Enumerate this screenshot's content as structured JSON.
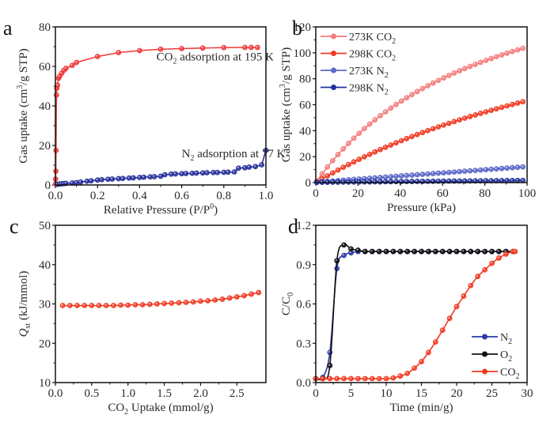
{
  "chart_data": [
    {
      "id": "a",
      "type": "line",
      "panel_letter": "a",
      "title": "",
      "xlabel": "Relative Pressure (P/P0)",
      "xlabel_parts": {
        "main": "Relative Pressure (P/P",
        "sup": "0",
        "tail": ")"
      },
      "ylabel": "Gas uptake (cm3/g STP)",
      "ylabel_parts": {
        "main": "Gas uptake (cm",
        "sup": "3",
        "tail": "/g STP)"
      },
      "xlim": [
        0,
        1.0
      ],
      "ylim": [
        0,
        80
      ],
      "xticks": [
        0.0,
        0.2,
        0.4,
        0.6,
        0.8,
        1.0
      ],
      "xtick_labels": [
        "0.0",
        "0.2",
        "0.4",
        "0.6",
        "0.8",
        "1.0"
      ],
      "yticks": [
        0,
        20,
        40,
        60,
        80
      ],
      "ytick_labels": [
        "0",
        "20",
        "40",
        "60",
        "80"
      ],
      "grid": false,
      "series": [
        {
          "name": "CO2 adsorption at 195 K",
          "color": "#f03a3a",
          "x": [
            0.0005,
            0.001,
            0.002,
            0.003,
            0.005,
            0.007,
            0.01,
            0.015,
            0.02,
            0.03,
            0.04,
            0.05,
            0.08,
            0.1,
            0.2,
            0.3,
            0.4,
            0.5,
            0.6,
            0.7,
            0.8,
            0.9,
            0.93,
            0.96
          ],
          "y": [
            0.5,
            3,
            7,
            17.5,
            45.5,
            49,
            50.5,
            54,
            55,
            56.5,
            58,
            59,
            60.5,
            62,
            65,
            67,
            68,
            68.7,
            69,
            69.3,
            69.5,
            69.6,
            69.6,
            69.6
          ]
        },
        {
          "name": "N2 adsorption at 77 K",
          "color": "#27309a",
          "x": [
            0.01,
            0.02,
            0.03,
            0.04,
            0.05,
            0.08,
            0.1,
            0.12,
            0.15,
            0.17,
            0.2,
            0.22,
            0.25,
            0.27,
            0.3,
            0.32,
            0.35,
            0.37,
            0.4,
            0.42,
            0.45,
            0.47,
            0.5,
            0.52,
            0.55,
            0.57,
            0.6,
            0.62,
            0.65,
            0.67,
            0.7,
            0.72,
            0.75,
            0.77,
            0.8,
            0.82,
            0.85,
            0.87,
            0.9,
            0.92,
            0.95,
            0.98,
            1.0
          ],
          "y": [
            0.3,
            0.5,
            0.6,
            0.7,
            0.8,
            1.0,
            1.2,
            1.5,
            1.9,
            2.1,
            2.5,
            2.7,
            2.9,
            3.0,
            3.2,
            3.3,
            3.5,
            3.6,
            3.8,
            3.9,
            4.1,
            4.2,
            4.4,
            5.2,
            5.5,
            5.6,
            5.7,
            5.8,
            5.9,
            6.0,
            6.1,
            6.2,
            6.3,
            6.3,
            6.4,
            6.5,
            6.6,
            8.5,
            8.7,
            9.0,
            9.3,
            10.2,
            17.5
          ]
        }
      ],
      "annotations": [
        {
          "text": "CO2 adsorption at 195 K",
          "parts": {
            "main": "CO",
            "sub": "2",
            "tail": " adsorption at 195 K"
          },
          "x": 0.48,
          "y": 63
        },
        {
          "text": "N2 adsorption at 77 K",
          "parts": {
            "main": "N",
            "sub": "2",
            "tail": " adsorption at 77 K"
          },
          "x": 0.6,
          "y": 14
        }
      ]
    },
    {
      "id": "b",
      "type": "line",
      "panel_letter": "b",
      "title": "",
      "xlabel": "Pressure (kPa)",
      "ylabel": "Gas uptake (cm3/g STP)",
      "ylabel_parts": {
        "main": "Gas uptake (cm",
        "sup": "3",
        "tail": "/g STP)"
      },
      "xlim": [
        0,
        100
      ],
      "ylim": [
        0,
        120
      ],
      "xticks": [
        0,
        20,
        40,
        60,
        80,
        100
      ],
      "xtick_labels": [
        "0",
        "20",
        "40",
        "60",
        "80",
        "100"
      ],
      "yticks": [
        0,
        20,
        40,
        60,
        80,
        100,
        120
      ],
      "ytick_labels": [
        "0",
        "20",
        "40",
        "60",
        "80",
        "100",
        "120"
      ],
      "grid": false,
      "legend": "top-left",
      "series": [
        {
          "name": "273K CO2",
          "legend_parts": {
            "main": "273K CO",
            "sub": "2"
          },
          "color": "#f47c7c",
          "model": {
            "kind": "langmuir",
            "qmax": 190,
            "b": 0.0122,
            "x_start": 0.5,
            "step": 2.5
          }
        },
        {
          "name": "298K CO2",
          "legend_parts": {
            "main": "298K CO",
            "sub": "2"
          },
          "color": "#f03a22",
          "model": {
            "kind": "langmuir",
            "qmax": 180,
            "b": 0.0054,
            "x_start": 0.5,
            "step": 2.5
          }
        },
        {
          "name": "273K N2",
          "legend_parts": {
            "main": "273K N",
            "sub": "2"
          },
          "color": "#5b68c6",
          "model": {
            "kind": "linear",
            "slope": 0.12,
            "offset": 0.3,
            "x_start": 0.5,
            "step": 2.5
          }
        },
        {
          "name": "298K N2",
          "legend_parts": {
            "main": "298K N",
            "sub": "2"
          },
          "color": "#22309a",
          "model": {
            "kind": "linear",
            "slope": 0.015,
            "offset": 0.2,
            "x_start": 0.5,
            "step": 2.5
          }
        }
      ],
      "series_summary": {
        "273K CO2": {
          "x": [
            0,
            10,
            20,
            30,
            40,
            50,
            60,
            70,
            80,
            90,
            100
          ],
          "y": [
            0,
            24,
            48,
            66,
            77,
            85,
            91,
            96,
            99,
            102,
            104
          ]
        },
        "298K CO2": {
          "x": [
            0,
            10,
            20,
            30,
            40,
            50,
            60,
            70,
            80,
            90,
            100
          ],
          "y": [
            0,
            9,
            18,
            26,
            33,
            40,
            46,
            51,
            55,
            59,
            63
          ]
        },
        "273K N2": {
          "x": [
            0,
            20,
            40,
            60,
            80,
            100
          ],
          "y": [
            0.3,
            2.7,
            5,
            7.5,
            10,
            12
          ]
        },
        "298K N2": {
          "x": [
            0,
            20,
            40,
            60,
            80,
            100
          ],
          "y": [
            0.2,
            0.5,
            0.8,
            1.1,
            1.4,
            1.7
          ]
        }
      }
    },
    {
      "id": "c",
      "type": "line",
      "panel_letter": "c",
      "title": "",
      "xlabel": "CO2 Uptake (mmol/g)",
      "xlabel_parts": {
        "main": "CO",
        "sub": "2",
        "tail": " Uptake (mmol/g)"
      },
      "ylabel": "Qst (kJ/mmol)",
      "ylabel_parts": {
        "main": "Q",
        "sub": "st",
        "tail": " (kJ/mmol)"
      },
      "xlim": [
        0,
        2.9
      ],
      "ylim": [
        10,
        50
      ],
      "xticks": [
        0.0,
        0.5,
        1.0,
        1.5,
        2.0,
        2.5
      ],
      "xtick_labels": [
        "0.0",
        "0.5",
        "1.0",
        "1.5",
        "2.0",
        "2.5"
      ],
      "yticks": [
        10,
        20,
        30,
        40,
        50
      ],
      "ytick_labels": [
        "10",
        "20",
        "30",
        "40",
        "50"
      ],
      "grid": false,
      "series": [
        {
          "name": "Qst",
          "color": "#f03a22",
          "x": [
            0.1,
            0.2,
            0.3,
            0.4,
            0.5,
            0.6,
            0.7,
            0.8,
            0.9,
            1.0,
            1.1,
            1.2,
            1.3,
            1.4,
            1.5,
            1.6,
            1.7,
            1.8,
            1.9,
            2.0,
            2.1,
            2.2,
            2.3,
            2.4,
            2.5,
            2.6,
            2.7,
            2.8
          ],
          "y": [
            29.6,
            29.6,
            29.6,
            29.6,
            29.6,
            29.6,
            29.6,
            29.6,
            29.7,
            29.7,
            29.8,
            29.8,
            29.9,
            30.0,
            30.1,
            30.2,
            30.3,
            30.4,
            30.5,
            30.7,
            30.8,
            31.0,
            31.2,
            31.5,
            31.8,
            32.1,
            32.5,
            32.9
          ]
        }
      ]
    },
    {
      "id": "d",
      "type": "line",
      "panel_letter": "d",
      "title": "",
      "xlabel": "Time (min/g)",
      "ylabel": "C/C0",
      "ylabel_parts": {
        "main": "C/C",
        "sub": "0",
        "tail": ""
      },
      "xlim": [
        0,
        30
      ],
      "ylim": [
        0,
        1.2
      ],
      "xticks": [
        0,
        5,
        10,
        15,
        20,
        25,
        30
      ],
      "xtick_labels": [
        "0",
        "5",
        "10",
        "15",
        "20",
        "25",
        "30"
      ],
      "yticks": [
        0.0,
        0.3,
        0.6,
        0.9,
        1.2
      ],
      "ytick_labels": [
        "0.0",
        "0.3",
        "0.6",
        "0.9",
        "1.2"
      ],
      "grid": false,
      "legend": "bottom-right",
      "series": [
        {
          "name": "N2",
          "legend_parts": {
            "main": "N",
            "sub": "2"
          },
          "color": "#2a3aa8",
          "x": [
            0,
            1,
            2,
            3,
            4,
            5,
            6,
            7,
            8,
            9,
            10,
            11,
            12,
            13,
            14,
            15,
            16,
            17,
            18,
            19,
            20,
            21,
            22,
            23,
            24,
            25,
            26,
            27,
            28
          ],
          "y": [
            0.03,
            0.04,
            0.23,
            0.87,
            0.97,
            0.99,
            1.0,
            1.0,
            1.0,
            1.0,
            1.0,
            1.0,
            1.0,
            1.0,
            1.0,
            1.0,
            1.0,
            1.0,
            1.0,
            1.0,
            1.0,
            1.0,
            1.0,
            1.0,
            1.0,
            1.0,
            1.0,
            1.0,
            1.0
          ]
        },
        {
          "name": "O2",
          "legend_parts": {
            "main": "O",
            "sub": "2"
          },
          "color": "#111111",
          "x": [
            0,
            1,
            2,
            3,
            4,
            5,
            6,
            7,
            8,
            9,
            10,
            11,
            12,
            13,
            14,
            15,
            16,
            17,
            18,
            19,
            20,
            21,
            22,
            23,
            24,
            25,
            26,
            27,
            28
          ],
          "y": [
            0.03,
            0.03,
            0.13,
            0.93,
            1.05,
            1.02,
            1.01,
            1.0,
            1.0,
            1.0,
            1.0,
            1.0,
            1.0,
            1.0,
            1.0,
            1.0,
            1.0,
            1.0,
            1.0,
            1.0,
            1.0,
            1.0,
            1.0,
            1.0,
            1.0,
            1.0,
            1.0,
            1.0,
            1.0
          ]
        },
        {
          "name": "CO2",
          "legend_parts": {
            "main": "CO",
            "sub": "2"
          },
          "color": "#f03a22",
          "x": [
            0,
            1,
            2,
            3,
            4,
            5,
            6,
            7,
            8,
            9,
            10,
            11,
            12,
            13,
            14,
            15,
            16,
            17,
            18,
            19,
            20,
            21,
            22,
            23,
            24,
            25,
            26,
            27,
            28,
            28.3
          ],
          "y": [
            0.03,
            0.03,
            0.03,
            0.03,
            0.03,
            0.03,
            0.03,
            0.03,
            0.03,
            0.03,
            0.03,
            0.035,
            0.05,
            0.07,
            0.11,
            0.16,
            0.23,
            0.31,
            0.4,
            0.49,
            0.58,
            0.66,
            0.74,
            0.81,
            0.86,
            0.91,
            0.95,
            0.98,
            1.0,
            1.0
          ]
        }
      ]
    }
  ]
}
